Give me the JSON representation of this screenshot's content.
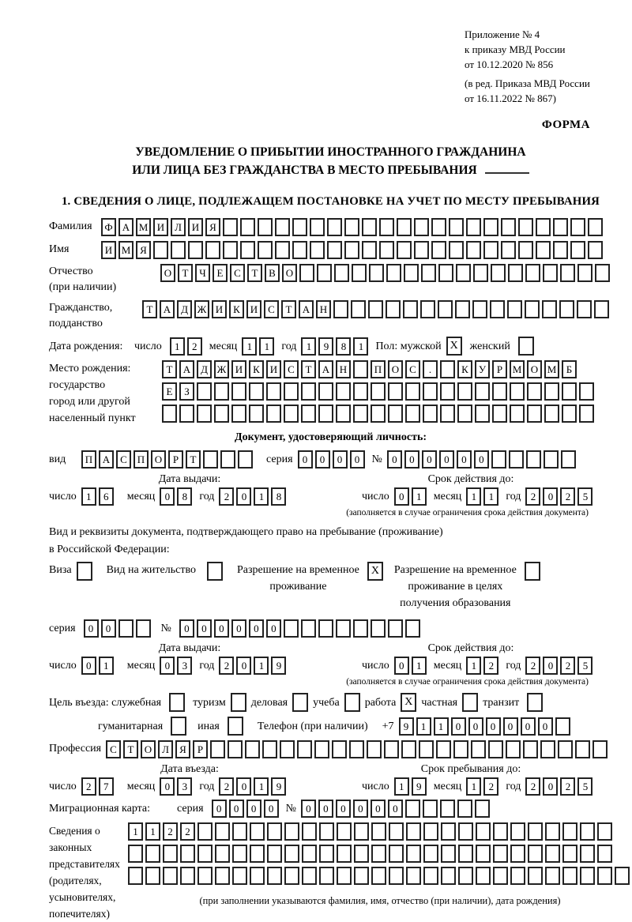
{
  "form": {
    "appendix": [
      "Приложение № 4",
      "к приказу МВД России",
      "от 10.12.2020 № 856"
    ],
    "revision": [
      "(в ред. Приказа МВД России",
      "от 16.11.2022 № 867)"
    ],
    "form_word": "ФОРМА",
    "title1": "УВЕДОМЛЕНИЕ О ПРИБЫТИИ ИНОСТРАННОГО ГРАЖДАНИНА",
    "title2": "ИЛИ ЛИЦА БЕЗ ГРАЖДАНСТВА В МЕСТО ПРЕБЫВАНИЯ",
    "section1_heading": "1. СВЕДЕНИЯ О ЛИЦЕ, ПОДЛЕЖАЩЕМ ПОСТАНОВКЕ НА УЧЕТ ПО МЕСТУ ПРЕБЫВАНИЯ"
  },
  "labels": {
    "day": "число",
    "month": "месяц",
    "year": "год",
    "seriya": "серия",
    "no": "№",
    "issue_date": "Дата выдачи:",
    "valid_until": "Срок действия до:",
    "restriction_note": "(заполняется в случае ограничения срока действия документа)"
  },
  "person": {
    "surname": {
      "label": "Фамилия",
      "boxes": {
        "text": "ФАМИЛИЯ",
        "len": 29
      }
    },
    "given_name": {
      "label": "Имя",
      "boxes": {
        "text": "ИМЯ",
        "len": 29
      }
    },
    "patronymic": {
      "label1": "Отчество",
      "label2": "(при наличии)",
      "boxes": {
        "text": "ОТЧЕСТВО",
        "len": 26
      }
    },
    "citizenship": {
      "label1": "Гражданство,",
      "label2": "подданство",
      "boxes": {
        "text": "ТАДЖИКИСТАН",
        "len": 27
      }
    },
    "birth_date": {
      "label": "Дата рождения:",
      "day": {
        "text": "12"
      },
      "month": {
        "text": "11"
      },
      "year": {
        "text": "1981"
      }
    },
    "gender": {
      "male_label": "Пол: мужской",
      "male": "X",
      "female_label": "женский",
      "female": ""
    },
    "birth_place": {
      "labels": [
        "Место рождения:",
        "государство",
        "город или другой",
        "населенный пункт"
      ],
      "row1": {
        "text": "ТАДЖИКИСТАН ПОС. КУРМОМБ",
        "len": 24
      },
      "row2": {
        "text": "ЕЗ",
        "len": 25
      },
      "row3": {
        "text": "",
        "len": 25
      }
    }
  },
  "identity_doc": {
    "heading": "Документ, удостоверяющий личность:",
    "kind_label": "вид",
    "kind": {
      "text": "ПАСПОРТ",
      "len": 10
    },
    "seriya": {
      "text": "0000",
      "len": 4
    },
    "number": {
      "text": "000000",
      "len": 11
    },
    "issue": {
      "day": {
        "text": "16"
      },
      "month": {
        "text": "08"
      },
      "year": {
        "text": "2018"
      }
    },
    "valid": {
      "day": {
        "text": "01"
      },
      "month": {
        "text": "11"
      },
      "year": {
        "text": "2025"
      }
    }
  },
  "residence_doc": {
    "intro1": "Вид и реквизиты документа, подтверждающего право на пребывание (проживание)",
    "intro2": "в Российской Федерации:",
    "visa_label": "Виза",
    "visa": "",
    "residence_permit_label": "Вид на жительство",
    "residence_permit": "",
    "temp_permit_lines": [
      "Разрешение на временное",
      "проживание"
    ],
    "temp_permit": "X",
    "edu_permit_lines": [
      "Разрешение на временное",
      "проживание в целях",
      "получения образования"
    ],
    "edu_permit": "",
    "seriya": {
      "text": "00",
      "len": 4
    },
    "number": {
      "text": "000000",
      "len": 14
    },
    "issue": {
      "day": {
        "text": "01"
      },
      "month": {
        "text": "03"
      },
      "year": {
        "text": "2019"
      }
    },
    "valid": {
      "day": {
        "text": "01"
      },
      "month": {
        "text": "12"
      },
      "year": {
        "text": "2025"
      }
    }
  },
  "visit": {
    "label": "Цель въезда: служебная",
    "opt1_v": "",
    "opt2": "туризм",
    "opt2_v": "",
    "opt3": "деловая",
    "opt3_v": "",
    "opt4": "учеба",
    "opt4_v": "",
    "opt5": "работа",
    "opt5_v": "X",
    "opt6": "частная",
    "opt6_v": "",
    "opt7": "транзит",
    "opt7_v": "",
    "opt8": "гуманитарная",
    "opt8_v": "",
    "opt9": "иная",
    "opt9_v": "",
    "phone_label": "Телефон (при наличии)",
    "phone_prefix": "+7",
    "phone": {
      "text": "911000000",
      "len": 10
    }
  },
  "profession": {
    "label": "Профессия",
    "boxes": {
      "text": "СТОЛЯР",
      "len": 29
    }
  },
  "entry": {
    "date_label": "Дата въезда:",
    "stay_label": "Срок пребывания до:",
    "date": {
      "day": {
        "text": "27"
      },
      "month": {
        "text": "03"
      },
      "year": {
        "text": "2019"
      }
    },
    "stay": {
      "day": {
        "text": "19"
      },
      "month": {
        "text": "12"
      },
      "year": {
        "text": "2025"
      }
    }
  },
  "migration_card": {
    "label": "Миграционная карта:",
    "seriya": {
      "text": "0000",
      "len": 4
    },
    "number": {
      "text": "000000",
      "len": 11
    }
  },
  "representatives": {
    "labels": [
      "Сведения о",
      "законных",
      "представителях",
      "(родителях,",
      "усыновителях,",
      "попечителях)"
    ],
    "row1": {
      "text": "1122",
      "len": 28
    },
    "row2": {
      "text": "",
      "len": 28
    },
    "row3": {
      "text": "",
      "len": 29
    },
    "note": "(при заполнении указываются фамилия, имя, отчество (при наличии), дата рождения)"
  }
}
